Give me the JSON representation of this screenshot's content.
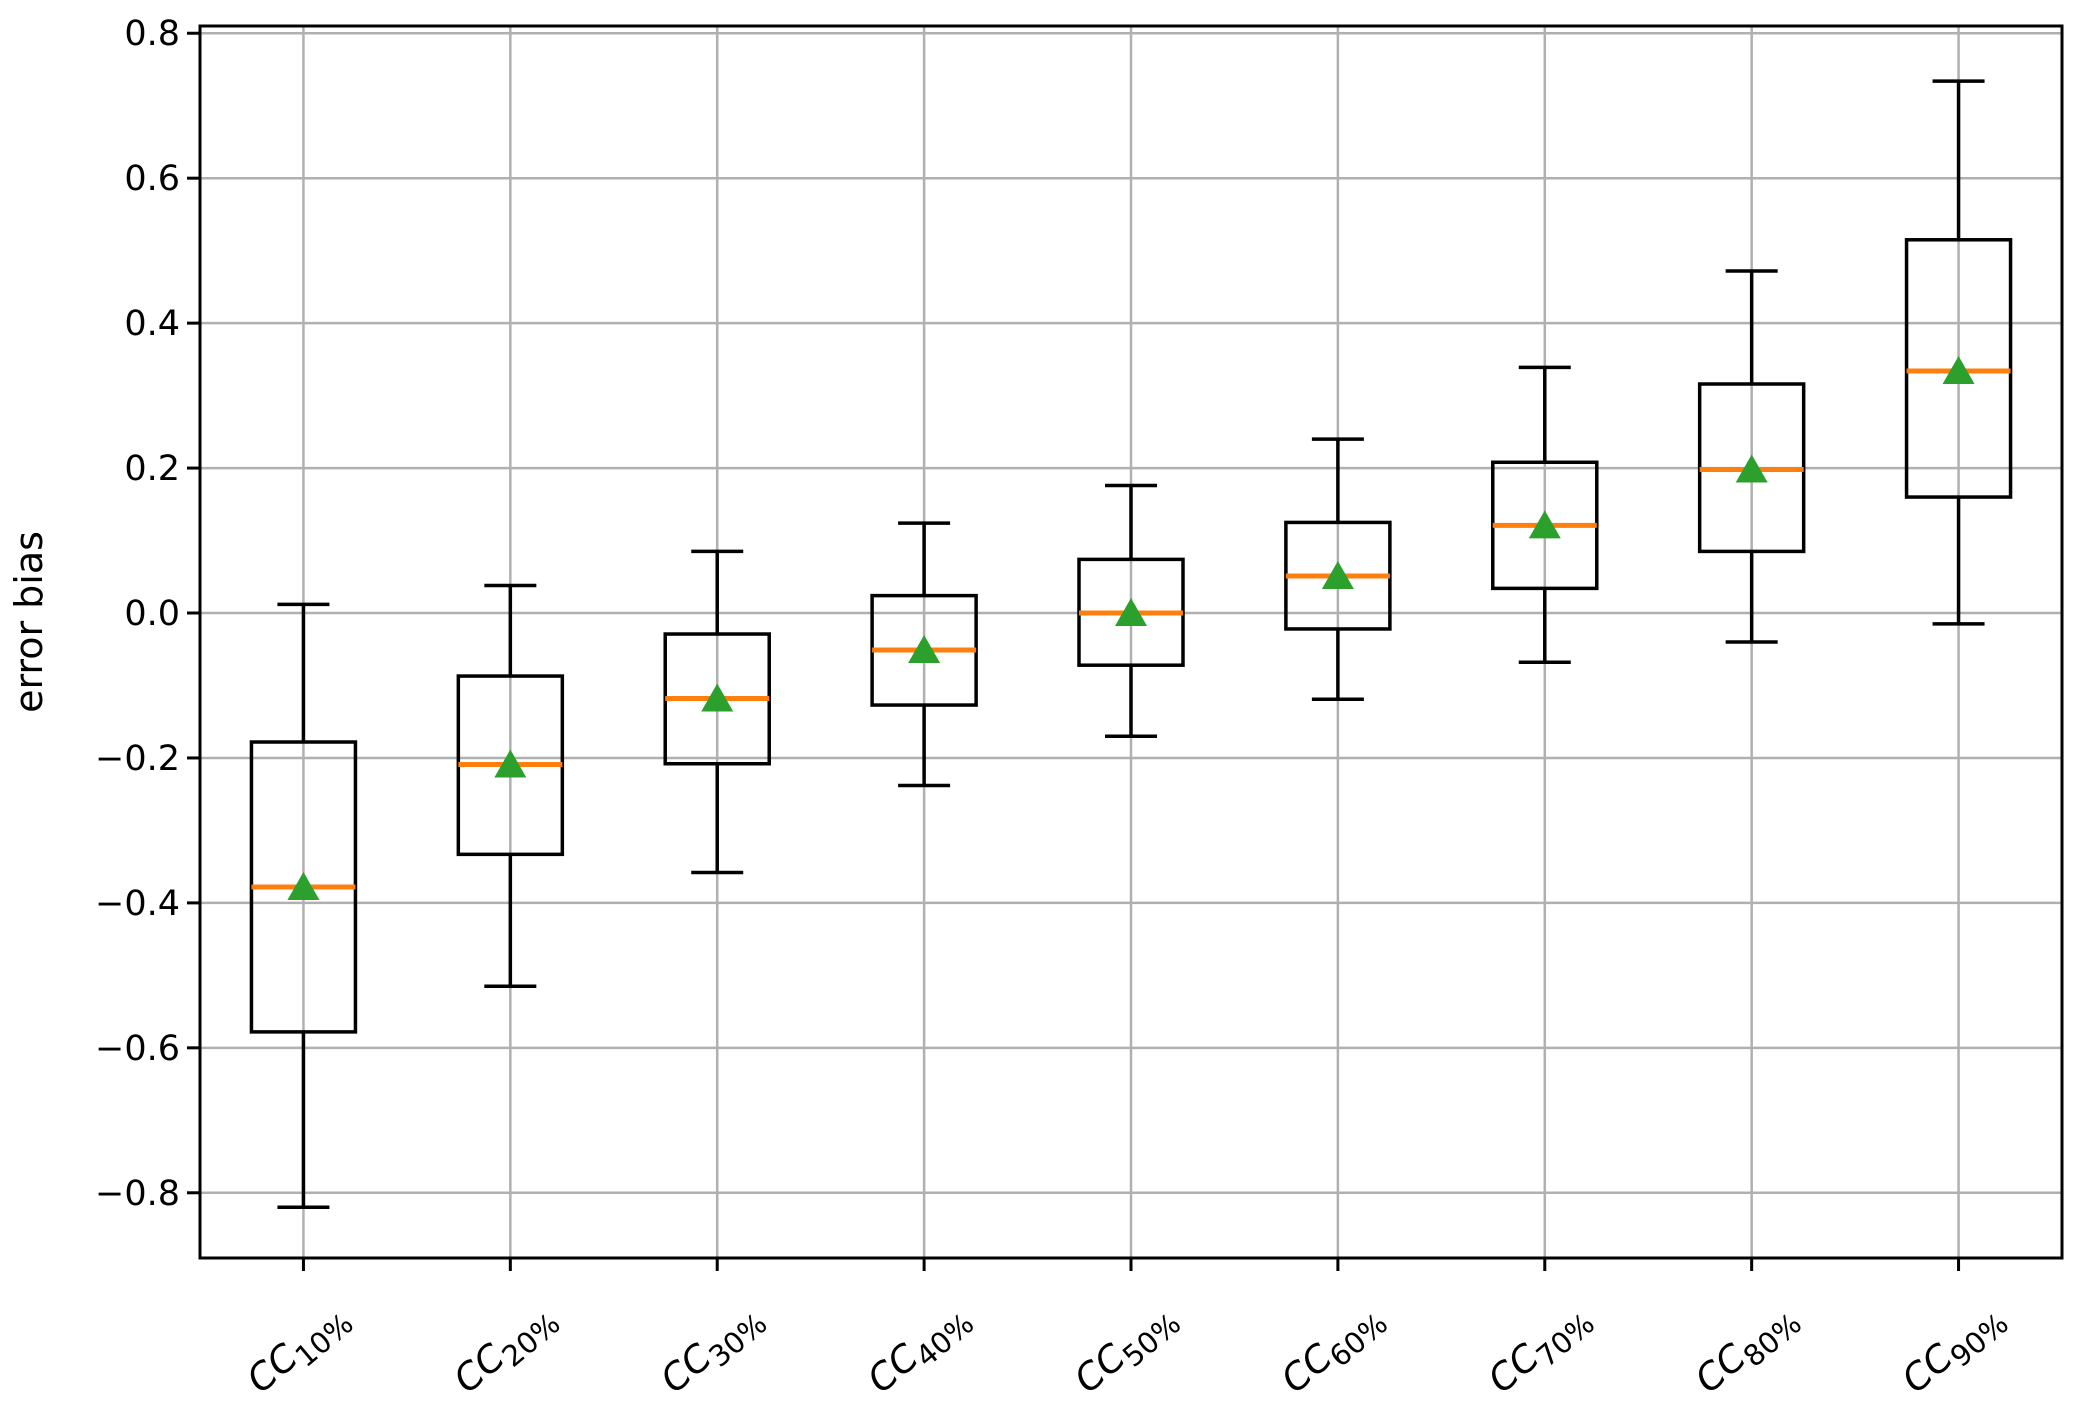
{
  "chart_data": {
    "type": "box",
    "title": "",
    "xlabel": "",
    "ylabel": "error bias",
    "grid": true,
    "legend_position": "none",
    "ylim": [
      -0.89,
      0.81
    ],
    "yticks": {
      "values": [
        0.8,
        0.6,
        0.4,
        0.2,
        0.0,
        -0.2,
        -0.4,
        -0.6,
        -0.8
      ],
      "labels": [
        "0.8",
        "0.6",
        "0.4",
        "0.2",
        "0.0",
        "−0.2",
        "−0.4",
        "−0.6",
        "−0.8"
      ]
    },
    "categories": [
      {
        "label": "CC10%",
        "base": "CC",
        "sub": "10%"
      },
      {
        "label": "CC20%",
        "base": "CC",
        "sub": "20%"
      },
      {
        "label": "CC30%",
        "base": "CC",
        "sub": "30%"
      },
      {
        "label": "CC40%",
        "base": "CC",
        "sub": "40%"
      },
      {
        "label": "CC50%",
        "base": "CC",
        "sub": "50%"
      },
      {
        "label": "CC60%",
        "base": "CC",
        "sub": "60%"
      },
      {
        "label": "CC70%",
        "base": "CC",
        "sub": "70%"
      },
      {
        "label": "CC80%",
        "base": "CC",
        "sub": "80%"
      },
      {
        "label": "CC90%",
        "base": "CC",
        "sub": "90%"
      }
    ],
    "boxes": [
      {
        "category": "CC10%",
        "whisker_low": -0.82,
        "q1": -0.578,
        "median": -0.378,
        "q3": -0.178,
        "whisker_high": 0.012,
        "mean": -0.378
      },
      {
        "category": "CC20%",
        "whisker_low": -0.515,
        "q1": -0.333,
        "median": -0.209,
        "q3": -0.087,
        "whisker_high": 0.038,
        "mean": -0.209
      },
      {
        "category": "CC30%",
        "whisker_low": -0.358,
        "q1": -0.208,
        "median": -0.118,
        "q3": -0.029,
        "whisker_high": 0.085,
        "mean": -0.118
      },
      {
        "category": "CC40%",
        "whisker_low": -0.238,
        "q1": -0.127,
        "median": -0.051,
        "q3": 0.024,
        "whisker_high": 0.124,
        "mean": -0.051
      },
      {
        "category": "CC50%",
        "whisker_low": -0.17,
        "q1": -0.072,
        "median": 0.0,
        "q3": 0.074,
        "whisker_high": 0.176,
        "mean": 0.0
      },
      {
        "category": "CC60%",
        "whisker_low": -0.119,
        "q1": -0.022,
        "median": 0.051,
        "q3": 0.125,
        "whisker_high": 0.24,
        "mean": 0.051
      },
      {
        "category": "CC70%",
        "whisker_low": -0.068,
        "q1": 0.034,
        "median": 0.121,
        "q3": 0.208,
        "whisker_high": 0.339,
        "mean": 0.121
      },
      {
        "category": "CC80%",
        "whisker_low": -0.04,
        "q1": 0.085,
        "median": 0.198,
        "q3": 0.316,
        "whisker_high": 0.472,
        "mean": 0.198
      },
      {
        "category": "CC90%",
        "whisker_low": -0.015,
        "q1": 0.16,
        "median": 0.334,
        "q3": 0.515,
        "whisker_high": 0.734,
        "mean": 0.334
      }
    ],
    "colors": {
      "background": "#ffffff",
      "box_line": "#000000",
      "median_line": "#ff7f0e",
      "mean_marker": "#2ca02c",
      "grid_line": "#b0b0b0",
      "axis_line": "#000000",
      "tick_text": "#000000"
    }
  }
}
